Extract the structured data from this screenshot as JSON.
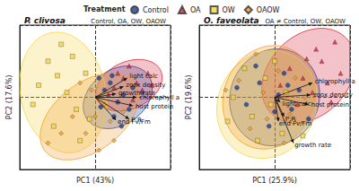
{
  "chart_data": [
    {
      "type": "scatter",
      "title": "P. clivosa",
      "annotation": "Control, OA, OW, OAOW",
      "x_label": "PC1 (43%)",
      "y_label": "PC2 (17.6%)",
      "xlim": [
        -4,
        4
      ],
      "ylim": [
        -3,
        3
      ],
      "xticks": [
        -4,
        0,
        4
      ],
      "yticks": [
        -3,
        0,
        3
      ],
      "tick_labels": false,
      "grid": true,
      "series": [
        {
          "name": "Control",
          "color": "#1f3f99",
          "marker": "circle",
          "values": [
            [
              0.5,
              0.3
            ],
            [
              1.2,
              -0.2
            ],
            [
              0.8,
              0.6
            ],
            [
              1.5,
              0.1
            ],
            [
              2.0,
              0.4
            ],
            [
              1.0,
              -0.8
            ],
            [
              0.3,
              -0.4
            ],
            [
              1.8,
              -0.5
            ],
            [
              0.9,
              0.9
            ],
            [
              2.5,
              0.2
            ],
            [
              1.4,
              -1.2
            ],
            [
              0.2,
              0.8
            ]
          ],
          "ellipse": {
            "center": [
              1.2,
              0.0
            ],
            "radii": [
              1.9,
              1.2
            ],
            "angle": 20
          }
        },
        {
          "name": "OA",
          "color": "#d7263d",
          "marker": "triangle",
          "values": [
            [
              1.5,
              0.8
            ],
            [
              2.2,
              0.6
            ],
            [
              1.0,
              0.4
            ],
            [
              2.8,
              1.0
            ],
            [
              1.8,
              1.3
            ],
            [
              0.7,
              0.1
            ],
            [
              2.5,
              0.3
            ],
            [
              1.2,
              1.0
            ],
            [
              3.0,
              0.5
            ],
            [
              2.0,
              -0.1
            ]
          ],
          "ellipse": {
            "center": [
              1.8,
              0.5
            ],
            "radii": [
              1.8,
              1.0
            ],
            "angle": 15
          }
        },
        {
          "name": "OW",
          "color": "#f5d547",
          "marker": "square",
          "values": [
            [
              -2.5,
              1.5
            ],
            [
              -1.8,
              2.2
            ],
            [
              -3.0,
              0.5
            ],
            [
              -1.0,
              -0.5
            ],
            [
              -2.2,
              -1.2
            ],
            [
              -0.5,
              1.0
            ],
            [
              -1.5,
              0.2
            ],
            [
              -3.3,
              -0.3
            ],
            [
              -0.8,
              -1.8
            ],
            [
              -2.0,
              0.9
            ],
            [
              -1.2,
              1.7
            ],
            [
              -0.3,
              -0.9
            ]
          ],
          "ellipse": {
            "center": [
              -1.7,
              0.2
            ],
            "radii": [
              2.2,
              2.6
            ],
            "angle": 30
          }
        },
        {
          "name": "OAOW",
          "color": "#f29e2e",
          "marker": "diamond",
          "values": [
            [
              -0.5,
              -1.5
            ],
            [
              0.2,
              -2.2
            ],
            [
              -1.2,
              -0.8
            ],
            [
              0.8,
              -1.0
            ],
            [
              -0.2,
              0.3
            ],
            [
              1.0,
              -1.8
            ],
            [
              -1.8,
              -1.5
            ],
            [
              0.5,
              -0.3
            ],
            [
              -0.8,
              0.6
            ],
            [
              1.5,
              -0.6
            ],
            [
              -2.5,
              -1.9
            ],
            [
              0.0,
              -0.8
            ]
          ],
          "ellipse": {
            "center": [
              -0.3,
              -0.8
            ],
            "radii": [
              2.8,
              1.5
            ],
            "angle": 25
          }
        }
      ],
      "loadings": [
        {
          "label": "light calc",
          "x": 1.7,
          "y": 0.8
        },
        {
          "label": "zoox density",
          "x": 1.5,
          "y": 0.45
        },
        {
          "label": "growth rate",
          "x": 1.1,
          "y": 0.15
        },
        {
          "label": "chlorophyll a",
          "x": 2.2,
          "y": 0.0
        },
        {
          "label": "host protein",
          "x": 2.0,
          "y": -0.35
        },
        {
          "label": "P:R",
          "x": 1.8,
          "y": -0.9
        },
        {
          "label": "end Fv/Fm",
          "x": 1.1,
          "y": -0.95
        }
      ]
    },
    {
      "type": "scatter",
      "title": "O. faveolata",
      "annotation": "OA ≠ Control, OW, OAOW",
      "x_label": "PC1 (25.9%)",
      "y_label": "PC2 (19.6%)",
      "xlim": [
        -4,
        4
      ],
      "ylim": [
        -3,
        3
      ],
      "xticks": [
        -4,
        0,
        4
      ],
      "yticks": [
        -3,
        0,
        3
      ],
      "tick_labels": false,
      "grid": true,
      "legend": "top",
      "legend_title": "Treatment",
      "series": [
        {
          "name": "Control",
          "color": "#1f3f99",
          "marker": "circle",
          "values": [
            [
              0.2,
              0.1
            ],
            [
              -0.8,
              0.6
            ],
            [
              0.9,
              -0.5
            ],
            [
              -1.5,
              -0.3
            ],
            [
              0.5,
              1.0
            ],
            [
              -0.3,
              -1.2
            ],
            [
              1.3,
              0.3
            ],
            [
              -1.0,
              1.3
            ],
            [
              0.0,
              -0.6
            ],
            [
              1.8,
              -0.9
            ],
            [
              -2.0,
              0.4
            ],
            [
              0.7,
              0.5
            ]
          ],
          "ellipse": {
            "center": [
              0.0,
              0.0
            ],
            "radii": [
              2.4,
              2.0
            ],
            "angle": 10
          }
        },
        {
          "name": "OA",
          "color": "#d7263d",
          "marker": "triangle",
          "values": [
            [
              1.5,
              0.8
            ],
            [
              2.5,
              1.5
            ],
            [
              3.2,
              2.3
            ],
            [
              2.0,
              0.2
            ],
            [
              0.8,
              1.2
            ],
            [
              3.5,
              1.0
            ],
            [
              1.2,
              -0.3
            ],
            [
              2.8,
              0.6
            ],
            [
              0.3,
              0.5
            ],
            [
              2.2,
              2.0
            ],
            [
              1.7,
              1.6
            ],
            [
              3.0,
              -0.2
            ]
          ],
          "ellipse": {
            "center": [
              1.8,
              0.9
            ],
            "radii": [
              2.6,
              1.8
            ],
            "angle": 25
          }
        },
        {
          "name": "OW",
          "color": "#f5d547",
          "marker": "square",
          "values": [
            [
              -1.2,
              -0.8
            ],
            [
              0.4,
              -1.5
            ],
            [
              -0.5,
              0.8
            ],
            [
              1.0,
              -1.0
            ],
            [
              -2.2,
              0.0
            ],
            [
              0.0,
              1.5
            ],
            [
              -1.6,
              1.2
            ],
            [
              0.6,
              0.2
            ],
            [
              -0.9,
              -1.8
            ],
            [
              1.5,
              -1.6
            ],
            [
              -0.2,
              -0.3
            ],
            [
              -2.5,
              -1.0
            ]
          ],
          "ellipse": {
            "center": [
              -0.4,
              -0.3
            ],
            "radii": [
              2.7,
              2.2
            ],
            "angle": 15
          }
        },
        {
          "name": "OAOW",
          "color": "#f29e2e",
          "marker": "diamond",
          "values": [
            [
              -0.6,
              0.2
            ],
            [
              0.8,
              -0.7
            ],
            [
              -1.3,
              -1.3
            ],
            [
              0.2,
              1.1
            ],
            [
              1.1,
              0.8
            ],
            [
              -1.9,
              0.7
            ],
            [
              0.5,
              -1.9
            ],
            [
              -0.4,
              -0.9
            ],
            [
              1.6,
              0.0
            ],
            [
              -1.0,
              1.8
            ],
            [
              -2.6,
              0.3
            ],
            [
              0.1,
              -0.2
            ]
          ],
          "ellipse": {
            "center": [
              -0.3,
              0.0
            ],
            "radii": [
              2.5,
              2.1
            ],
            "angle": 20
          }
        }
      ],
      "loadings": [
        {
          "label": "light calc",
          "x": 0.3,
          "y": -0.2
        },
        {
          "label": "chlorophyll a",
          "x": 2.0,
          "y": 0.6
        },
        {
          "label": "zoox density",
          "x": 1.9,
          "y": 0.1
        },
        {
          "label": "host protein",
          "x": 1.8,
          "y": -0.3
        },
        {
          "label": "P:R",
          "x": 0.5,
          "y": -0.8
        },
        {
          "label": "end Fv/Fm",
          "x": 0.2,
          "y": -1.0
        },
        {
          "label": "growth rate",
          "x": 1.0,
          "y": -1.9
        }
      ]
    }
  ]
}
